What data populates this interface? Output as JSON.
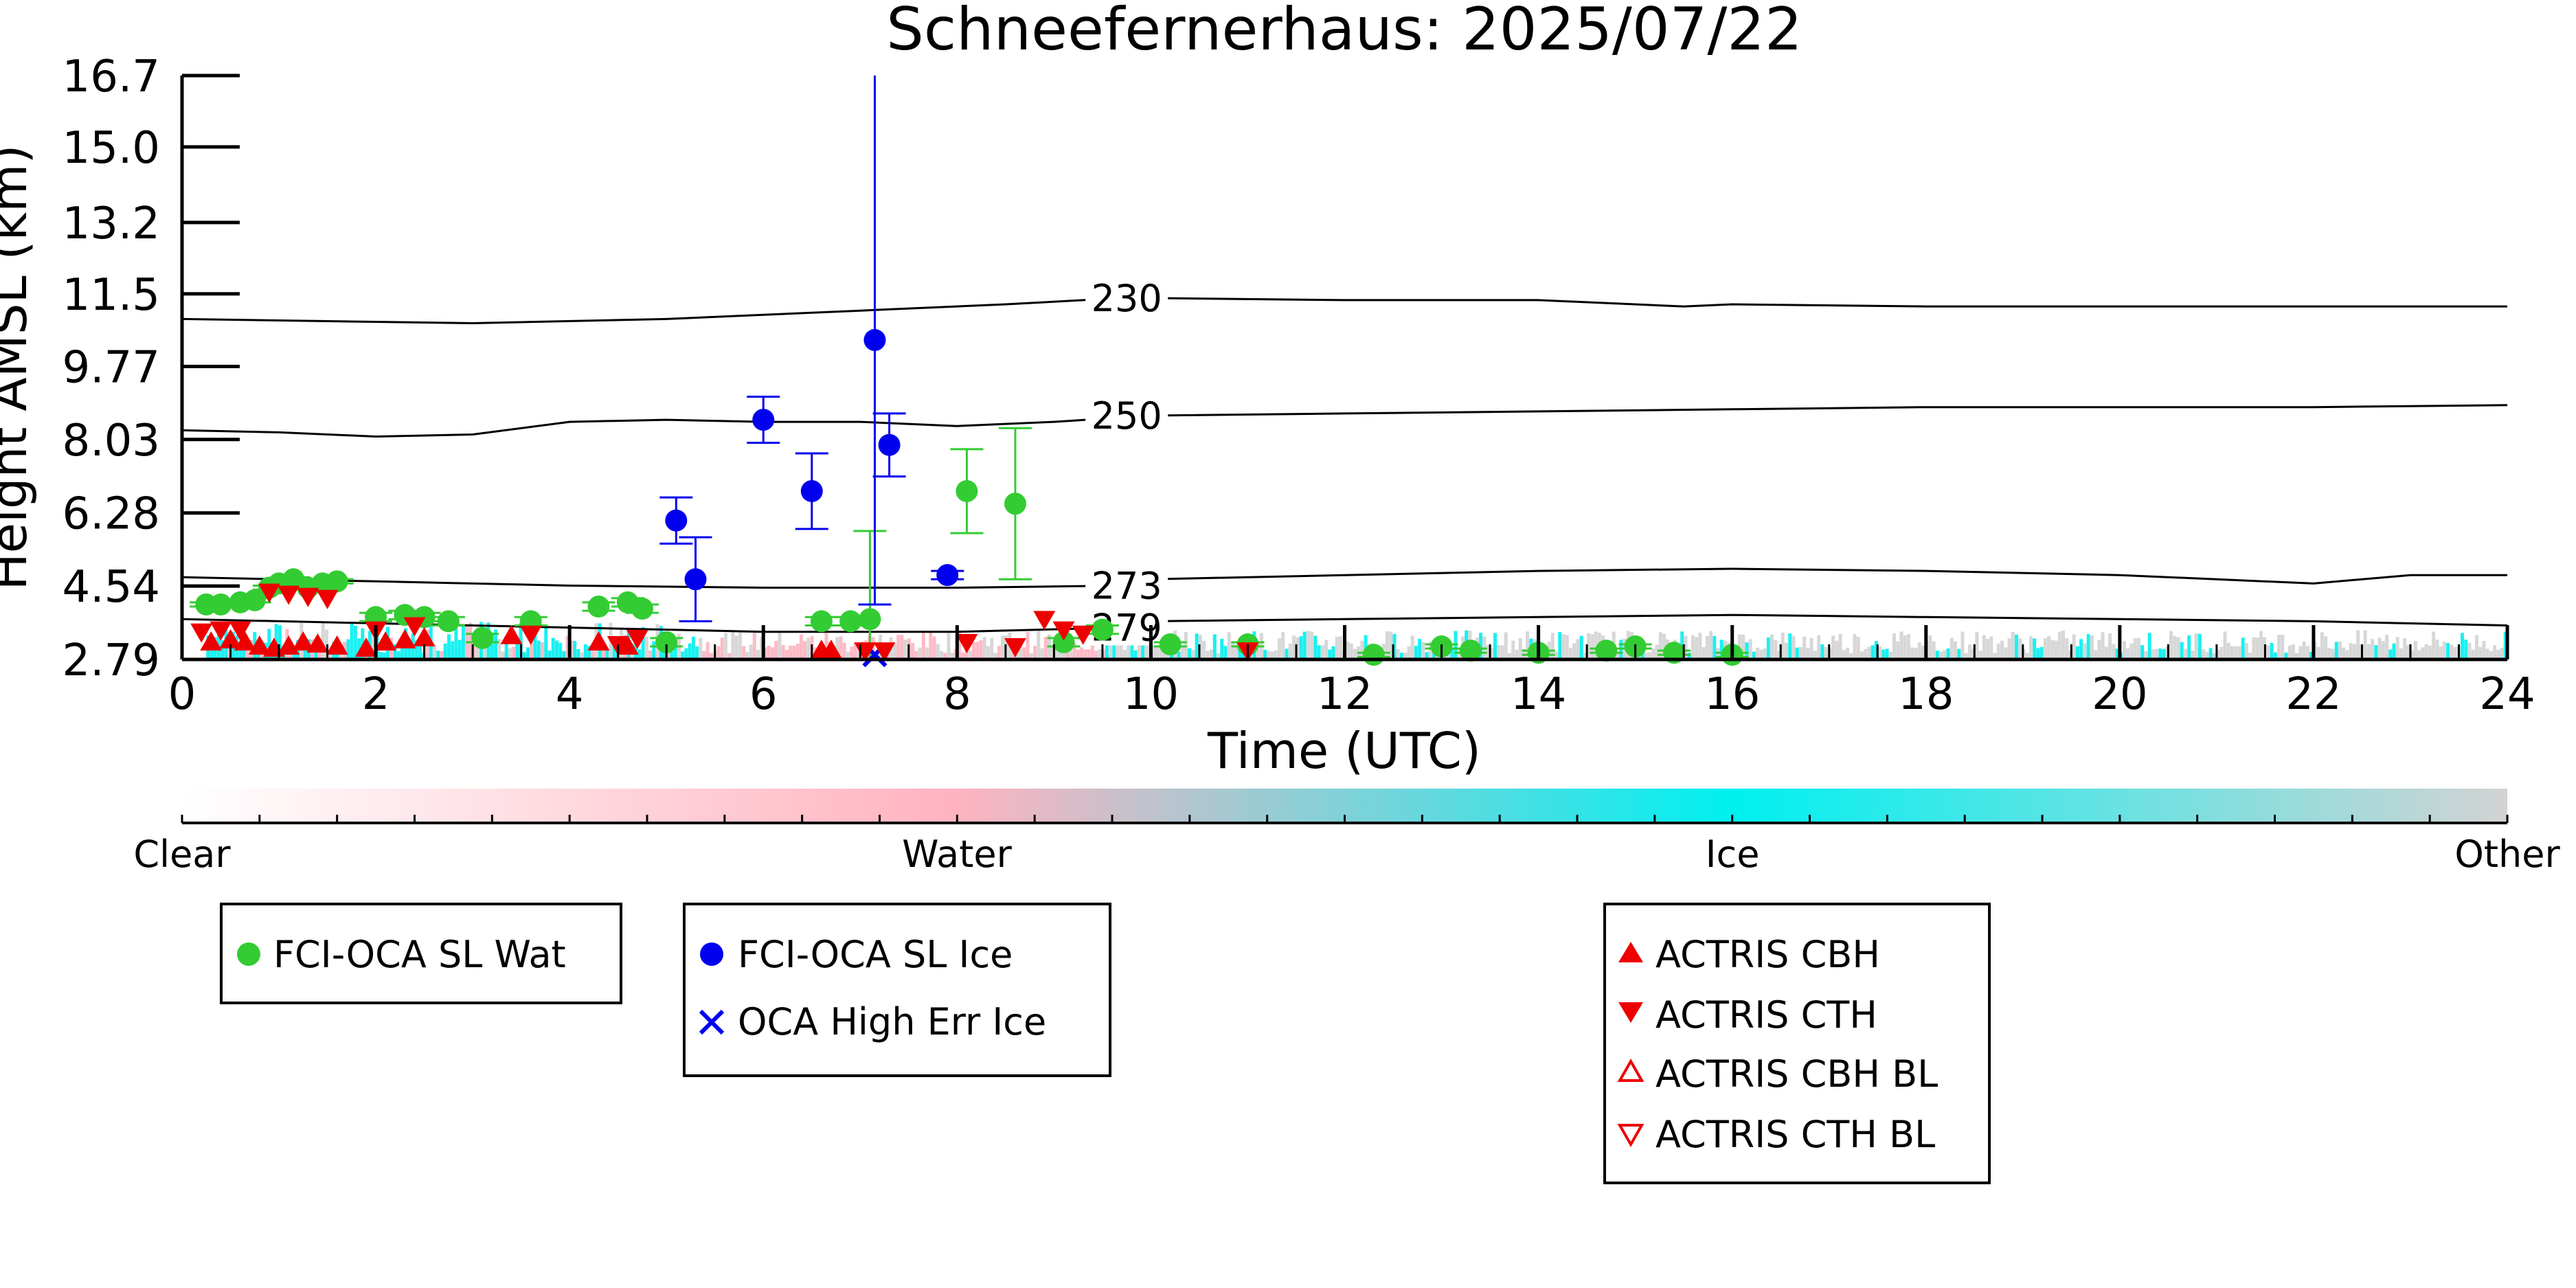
{
  "chart_data": {
    "type": "scatter",
    "title": "Schneefernerhaus: 2025/07/22",
    "xlabel": "Time (UTC)",
    "ylabel": "Height AMSL (km)",
    "xlim": [
      0,
      24
    ],
    "ylim": [
      2.79,
      16.7
    ],
    "xticks": [
      0,
      2,
      4,
      6,
      8,
      10,
      12,
      14,
      16,
      18,
      20,
      22,
      24
    ],
    "yticks": [
      "2.79",
      "4.54",
      "6.28",
      "8.03",
      "9.77",
      "11.5",
      "13.2",
      "15.0",
      "16.7"
    ],
    "colorbar": {
      "labels": [
        "Clear",
        "Water",
        "Ice",
        "Other"
      ],
      "colors": [
        "#ffffff",
        "#ffb3c0",
        "#00f0f0",
        "#d3d3d3"
      ]
    },
    "contours": [
      {
        "label": "230",
        "x": [
          0,
          1.5,
          3,
          5,
          7,
          8.5,
          9.7,
          10,
          12,
          14,
          15.5,
          16,
          18,
          20,
          22,
          24
        ],
        "y": [
          10.9,
          10.85,
          10.8,
          10.9,
          11.1,
          11.25,
          11.4,
          11.4,
          11.35,
          11.35,
          11.2,
          11.25,
          11.2,
          11.2,
          11.2,
          11.2
        ]
      },
      {
        "label": "250",
        "x": [
          0,
          1,
          2,
          3,
          4,
          5,
          6,
          7,
          8,
          9,
          10,
          12,
          14,
          16,
          18,
          20,
          22,
          24
        ],
        "y": [
          8.25,
          8.2,
          8.1,
          8.15,
          8.45,
          8.5,
          8.45,
          8.45,
          8.35,
          8.45,
          8.6,
          8.65,
          8.7,
          8.75,
          8.8,
          8.8,
          8.8,
          8.85
        ]
      },
      {
        "label": "273",
        "x": [
          0,
          2,
          4,
          6,
          8,
          9.7,
          10,
          12,
          14,
          16,
          18,
          20,
          22,
          23,
          24
        ],
        "y": [
          4.75,
          4.65,
          4.55,
          4.5,
          4.5,
          4.55,
          4.7,
          4.8,
          4.9,
          4.95,
          4.9,
          4.8,
          4.6,
          4.8,
          4.8
        ]
      },
      {
        "label": "279",
        "x": [
          0,
          2,
          4,
          6,
          8,
          9.7,
          10,
          12,
          14,
          16,
          18,
          20,
          22,
          24
        ],
        "y": [
          3.75,
          3.65,
          3.55,
          3.45,
          3.45,
          3.55,
          3.7,
          3.75,
          3.8,
          3.85,
          3.8,
          3.75,
          3.7,
          3.6
        ]
      }
    ],
    "series": [
      {
        "name": "FCI-OCA SL Wat",
        "color": "#33cc33",
        "marker": "circle",
        "x": [
          0.25,
          0.4,
          0.6,
          0.75,
          0.9,
          1.0,
          1.15,
          1.3,
          1.45,
          1.6,
          2.0,
          2.3,
          2.5,
          2.75,
          3.1,
          3.6,
          4.3,
          4.6,
          4.75,
          5.0,
          6.6,
          6.9,
          7.1,
          8.1,
          8.6,
          9.1,
          9.5,
          10.2,
          11.0,
          12.3,
          13.0,
          13.3,
          14.0,
          14.7,
          15.0,
          15.4,
          16.0
        ],
        "y": [
          4.1,
          4.1,
          4.15,
          4.2,
          4.5,
          4.6,
          4.7,
          4.5,
          4.6,
          4.65,
          3.8,
          3.85,
          3.8,
          3.7,
          3.3,
          3.7,
          4.05,
          4.15,
          4.0,
          3.2,
          3.7,
          3.7,
          3.75,
          6.8,
          6.5,
          3.2,
          3.5,
          3.15,
          3.15,
          2.9,
          3.1,
          3.0,
          2.95,
          3.0,
          3.1,
          2.95,
          2.9
        ],
        "yerr": [
          0.05,
          0.05,
          0.05,
          0.05,
          0.05,
          0.05,
          0.05,
          0.05,
          0.05,
          0.05,
          0.1,
          0.1,
          0.1,
          0.1,
          0.1,
          0.1,
          0.1,
          0.1,
          0.1,
          0.1,
          0.1,
          0.1,
          2.1,
          1.0,
          1.8,
          0.1,
          0.1,
          0.05,
          0.05,
          0.05,
          0.05,
          0.05,
          0.05,
          0.05,
          0.05,
          0.05,
          0.05
        ]
      },
      {
        "name": "FCI-OCA SL Ice",
        "color": "#0000ee",
        "marker": "circle",
        "x": [
          5.1,
          5.3,
          6.0,
          6.5,
          7.15,
          7.3,
          7.9
        ],
        "y": [
          6.1,
          4.7,
          8.5,
          6.8,
          10.4,
          7.9,
          4.8
        ],
        "yerr": [
          0.55,
          1.0,
          0.55,
          0.9,
          6.3,
          0.75,
          0.1
        ]
      },
      {
        "name": "OCA High Err Ice",
        "color": "#0000ee",
        "marker": "x",
        "x": [
          7.15
        ],
        "y": [
          2.9
        ]
      },
      {
        "name": "ACTRIS CBH",
        "color": "#ee0000",
        "marker": "triangle-up",
        "x": [
          0.3,
          0.5,
          0.65,
          0.8,
          0.95,
          1.1,
          1.25,
          1.4,
          1.6,
          1.9,
          2.1,
          2.3,
          2.5,
          3.4,
          4.3,
          4.6,
          6.6,
          6.7
        ],
        "y": [
          3.2,
          3.25,
          3.2,
          3.1,
          3.05,
          3.1,
          3.2,
          3.15,
          3.1,
          3.05,
          3.2,
          3.25,
          3.3,
          3.35,
          3.2,
          3.1,
          3.0,
          3.0
        ]
      },
      {
        "name": "ACTRIS CTH",
        "color": "#ee0000",
        "marker": "triangle-down",
        "x": [
          0.2,
          0.4,
          0.6,
          0.9,
          1.1,
          1.3,
          1.5,
          2.0,
          2.4,
          3.6,
          4.5,
          4.7,
          7.05,
          7.25,
          8.1,
          8.6,
          8.9,
          9.1,
          9.3,
          11.0
        ],
        "y": [
          3.45,
          3.5,
          3.5,
          4.4,
          4.35,
          4.3,
          4.25,
          3.5,
          3.6,
          3.4,
          3.15,
          3.3,
          3.0,
          3.0,
          3.2,
          3.1,
          3.75,
          3.5,
          3.4,
          3.0
        ]
      },
      {
        "name": "ACTRIS CBH BL",
        "color": "#ee0000",
        "marker": "triangle-up-open",
        "x": [],
        "y": []
      },
      {
        "name": "ACTRIS CTH BL",
        "color": "#ee0000",
        "marker": "triangle-down-open",
        "x": [],
        "y": []
      }
    ],
    "legend_groups": [
      [
        "FCI-OCA SL Wat"
      ],
      [
        "FCI-OCA SL Ice",
        "OCA High Err Ice"
      ],
      [
        "ACTRIS CBH",
        "ACTRIS CTH",
        "ACTRIS CBH BL",
        "ACTRIS CTH BL"
      ]
    ]
  }
}
